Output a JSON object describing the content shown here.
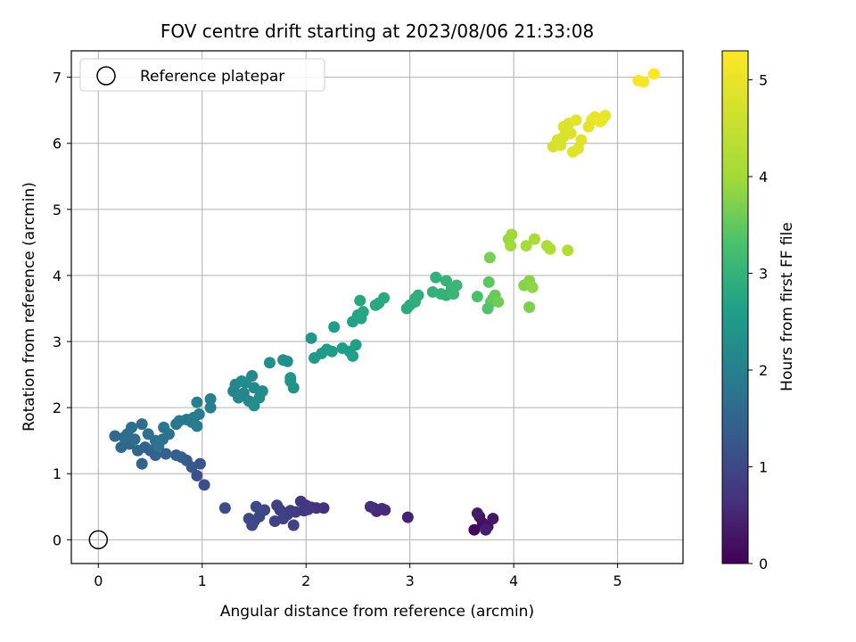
{
  "chart_data": {
    "type": "scatter",
    "title": "FOV centre drift starting at 2023/08/06 21:33:08",
    "xlabel": "Angular distance from reference (arcmin)",
    "ylabel": "Rotation from reference (arcmin)",
    "xlim": [
      -0.26,
      5.63
    ],
    "ylim": [
      -0.36,
      7.4
    ],
    "xticks": [
      "0",
      "1",
      "2",
      "3",
      "4",
      "5"
    ],
    "yticks": [
      "0",
      "1",
      "2",
      "3",
      "4",
      "5",
      "6",
      "7"
    ],
    "grid": true,
    "legend": {
      "placement": "top-left",
      "entries": [
        "Reference platepar"
      ]
    },
    "reference_point": {
      "x": 0,
      "y": 0,
      "label": "Reference platepar"
    },
    "colorbar": {
      "label": "Hours from first FF file",
      "colormap": "viridis",
      "range": [
        0,
        5.3
      ],
      "ticks": [
        "0",
        "1",
        "2",
        "3",
        "4",
        "5"
      ]
    },
    "points_columns": [
      "x",
      "y",
      "hours"
    ],
    "points": [
      [
        3.62,
        0.15,
        0.1
      ],
      [
        3.67,
        0.35,
        0.15
      ],
      [
        3.7,
        0.25,
        0.2
      ],
      [
        3.75,
        0.2,
        0.25
      ],
      [
        3.8,
        0.32,
        0.3
      ],
      [
        3.65,
        0.4,
        0.35
      ],
      [
        3.73,
        0.15,
        0.4
      ],
      [
        2.98,
        0.34,
        0.45
      ],
      [
        2.65,
        0.48,
        0.5
      ],
      [
        2.68,
        0.43,
        0.55
      ],
      [
        2.73,
        0.47,
        0.58
      ],
      [
        2.76,
        0.45,
        0.6
      ],
      [
        2.62,
        0.5,
        0.62
      ],
      [
        2.17,
        0.48,
        0.65
      ],
      [
        2.1,
        0.48,
        0.68
      ],
      [
        2.05,
        0.49,
        0.7
      ],
      [
        1.95,
        0.58,
        0.72
      ],
      [
        2.0,
        0.52,
        0.74
      ],
      [
        2.02,
        0.46,
        0.76
      ],
      [
        1.98,
        0.44,
        0.78
      ],
      [
        1.9,
        0.42,
        0.8
      ],
      [
        1.85,
        0.44,
        0.82
      ],
      [
        1.82,
        0.38,
        0.84
      ],
      [
        1.75,
        0.45,
        0.86
      ],
      [
        1.72,
        0.52,
        0.88
      ],
      [
        1.78,
        0.32,
        0.9
      ],
      [
        1.7,
        0.28,
        0.92
      ],
      [
        1.88,
        0.22,
        0.94
      ],
      [
        1.6,
        0.45,
        0.96
      ],
      [
        1.55,
        0.35,
        0.98
      ],
      [
        1.5,
        0.28,
        1.0
      ],
      [
        1.48,
        0.22,
        1.02
      ],
      [
        1.45,
        0.32,
        1.04
      ],
      [
        1.52,
        0.5,
        1.06
      ],
      [
        1.22,
        0.48,
        1.08
      ],
      [
        1.02,
        0.83,
        1.1
      ],
      [
        0.95,
        0.97,
        1.15
      ],
      [
        0.98,
        1.15,
        1.2
      ],
      [
        0.9,
        1.1,
        1.25
      ],
      [
        0.85,
        1.2,
        1.3
      ],
      [
        0.8,
        1.25,
        1.35
      ],
      [
        0.75,
        1.28,
        1.4
      ],
      [
        0.65,
        1.3,
        1.42
      ],
      [
        0.55,
        1.28,
        1.44
      ],
      [
        0.5,
        1.35,
        1.46
      ],
      [
        0.42,
        1.15,
        1.48
      ],
      [
        0.45,
        1.4,
        1.5
      ],
      [
        0.38,
        1.35,
        1.52
      ],
      [
        0.3,
        1.45,
        1.54
      ],
      [
        0.22,
        1.4,
        1.56
      ],
      [
        0.16,
        1.57,
        1.58
      ],
      [
        0.25,
        1.55,
        1.6
      ],
      [
        0.35,
        1.52,
        1.62
      ],
      [
        0.28,
        1.6,
        1.64
      ],
      [
        0.32,
        1.7,
        1.66
      ],
      [
        0.42,
        1.75,
        1.68
      ],
      [
        0.48,
        1.6,
        1.7
      ],
      [
        0.55,
        1.5,
        1.72
      ],
      [
        0.58,
        1.42,
        1.74
      ],
      [
        0.62,
        1.52,
        1.76
      ],
      [
        0.68,
        1.6,
        1.78
      ],
      [
        0.63,
        1.7,
        1.8
      ],
      [
        0.75,
        1.75,
        1.82
      ],
      [
        0.78,
        1.8,
        1.84
      ],
      [
        0.85,
        1.82,
        1.86
      ],
      [
        0.9,
        1.78,
        1.88
      ],
      [
        0.92,
        1.85,
        1.9
      ],
      [
        0.95,
        1.72,
        1.92
      ],
      [
        0.97,
        1.9,
        1.94
      ],
      [
        0.95,
        2.08,
        1.96
      ],
      [
        1.08,
        2.0,
        1.98
      ],
      [
        1.08,
        2.13,
        2.0
      ],
      [
        1.3,
        2.25,
        2.05
      ],
      [
        1.32,
        2.35,
        2.08
      ],
      [
        1.35,
        2.15,
        2.1
      ],
      [
        1.4,
        2.22,
        2.12
      ],
      [
        1.45,
        2.1,
        2.14
      ],
      [
        1.48,
        2.48,
        2.16
      ],
      [
        1.5,
        2.3,
        2.18
      ],
      [
        1.42,
        2.38,
        2.2
      ],
      [
        1.38,
        2.4,
        2.22
      ],
      [
        1.55,
        2.15,
        2.24
      ],
      [
        1.58,
        2.25,
        2.26
      ],
      [
        1.5,
        2.03,
        2.28
      ],
      [
        1.65,
        2.68,
        2.3
      ],
      [
        1.78,
        2.72,
        2.32
      ],
      [
        1.82,
        2.7,
        2.34
      ],
      [
        1.85,
        2.4,
        2.36
      ],
      [
        1.88,
        2.3,
        2.38
      ],
      [
        1.85,
        2.45,
        2.4
      ],
      [
        2.05,
        3.05,
        2.45
      ],
      [
        2.08,
        2.75,
        2.5
      ],
      [
        2.15,
        2.82,
        2.52
      ],
      [
        2.2,
        2.88,
        2.54
      ],
      [
        2.25,
        2.85,
        2.56
      ],
      [
        2.27,
        3.22,
        2.58
      ],
      [
        2.35,
        2.9,
        2.6
      ],
      [
        2.42,
        2.85,
        2.62
      ],
      [
        2.45,
        2.78,
        2.64
      ],
      [
        2.48,
        2.95,
        2.66
      ],
      [
        2.45,
        3.3,
        2.68
      ],
      [
        2.5,
        3.4,
        2.7
      ],
      [
        2.53,
        3.35,
        2.72
      ],
      [
        2.55,
        3.45,
        2.74
      ],
      [
        2.52,
        3.62,
        2.76
      ],
      [
        2.67,
        3.55,
        2.78
      ],
      [
        2.7,
        3.58,
        2.8
      ],
      [
        2.75,
        3.66,
        2.82
      ],
      [
        2.97,
        3.5,
        2.84
      ],
      [
        3.0,
        3.55,
        2.86
      ],
      [
        3.05,
        3.6,
        2.88
      ],
      [
        3.08,
        3.7,
        2.9
      ],
      [
        3.05,
        3.65,
        2.92
      ],
      [
        3.25,
        3.97,
        2.94
      ],
      [
        3.22,
        3.75,
        2.96
      ],
      [
        3.3,
        3.72,
        2.98
      ],
      [
        3.35,
        3.7,
        3.0
      ],
      [
        3.35,
        3.92,
        3.02
      ],
      [
        3.4,
        3.8,
        3.04
      ],
      [
        3.42,
        3.72,
        3.06
      ],
      [
        3.45,
        3.85,
        3.08
      ],
      [
        3.65,
        3.68,
        3.3
      ],
      [
        3.75,
        3.5,
        3.35
      ],
      [
        3.78,
        3.6,
        3.4
      ],
      [
        3.76,
        3.9,
        3.45
      ],
      [
        3.8,
        3.65,
        3.5
      ],
      [
        3.82,
        3.7,
        3.55
      ],
      [
        3.85,
        3.6,
        3.6
      ],
      [
        3.77,
        4.27,
        3.65
      ],
      [
        4.15,
        3.52,
        3.7
      ],
      [
        4.1,
        3.85,
        3.75
      ],
      [
        4.15,
        3.92,
        3.8
      ],
      [
        4.18,
        3.82,
        3.85
      ],
      [
        3.95,
        4.55,
        3.9
      ],
      [
        3.98,
        4.62,
        3.95
      ],
      [
        3.97,
        4.45,
        4.0
      ],
      [
        4.12,
        4.45,
        4.05
      ],
      [
        4.2,
        4.55,
        4.1
      ],
      [
        4.32,
        4.45,
        4.15
      ],
      [
        4.35,
        4.4,
        4.2
      ],
      [
        4.52,
        4.38,
        4.25
      ],
      [
        4.38,
        5.95,
        4.7
      ],
      [
        4.42,
        6.05,
        4.72
      ],
      [
        4.45,
        5.97,
        4.74
      ],
      [
        4.48,
        6.1,
        4.76
      ],
      [
        4.5,
        6.2,
        4.78
      ],
      [
        4.53,
        6.3,
        4.8
      ],
      [
        4.55,
        6.15,
        4.82
      ],
      [
        4.48,
        6.25,
        4.84
      ],
      [
        4.57,
        5.87,
        4.86
      ],
      [
        4.62,
        5.92,
        4.88
      ],
      [
        4.65,
        6.05,
        4.9
      ],
      [
        4.6,
        6.35,
        4.92
      ],
      [
        4.72,
        6.25,
        4.94
      ],
      [
        4.75,
        6.35,
        4.96
      ],
      [
        4.78,
        6.4,
        4.98
      ],
      [
        4.85,
        6.35,
        5.0
      ],
      [
        4.88,
        6.42,
        5.02
      ],
      [
        4.83,
        6.33,
        5.04
      ],
      [
        5.2,
        6.95,
        5.15
      ],
      [
        5.25,
        6.93,
        5.2
      ],
      [
        5.35,
        7.05,
        5.28
      ]
    ]
  }
}
